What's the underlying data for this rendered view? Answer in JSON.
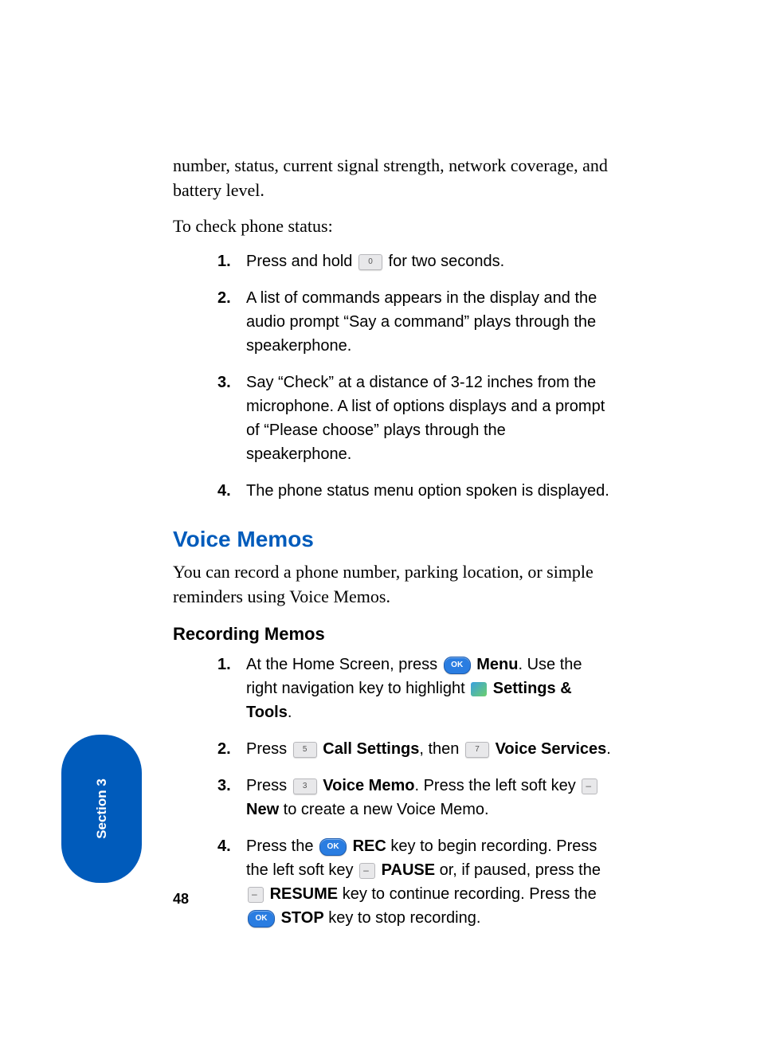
{
  "intro": {
    "continuation": "number, status, current signal strength, network coverage, and battery level.",
    "lead_in": "To check phone status:"
  },
  "check_steps": [
    {
      "num": "1.",
      "before": "Press and hold ",
      "icon": "key-0",
      "after": " for two seconds."
    },
    {
      "num": "2.",
      "text": "A list of commands appears in the display and the audio prompt “Say a command” plays through the speakerphone."
    },
    {
      "num": "3.",
      "text": "Say “Check” at a distance of 3-12 inches from the microphone. A list of options displays and a prompt of “Please choose” plays through the speakerphone."
    },
    {
      "num": "4.",
      "text": "The phone status menu option spoken is displayed."
    }
  ],
  "voice_memos": {
    "heading": "Voice Memos",
    "intro": "You can record a phone number, parking location, or simple reminders using Voice Memos.",
    "sub_heading": "Recording Memos"
  },
  "record_steps": {
    "s1": {
      "num": "1.",
      "t1": "At the Home Screen, press ",
      "menu": "Menu",
      "t2": ". Use the right navigation key to highlight ",
      "settings": "Settings & Tools",
      "t3": "."
    },
    "s2": {
      "num": "2.",
      "t1": "Press ",
      "call": "Call Settings",
      "t2": ", then ",
      "voice": "Voice Services",
      "t3": "."
    },
    "s3": {
      "num": "3.",
      "t1": "Press ",
      "memo": "Voice Memo",
      "t2": ". Press the left soft key ",
      "new": "New",
      "t3": " to create a new Voice Memo."
    },
    "s4": {
      "num": "4.",
      "t1": "Press the ",
      "rec": "REC",
      "t2": " key to begin recording. Press the left soft key ",
      "pause": "PAUSE",
      "t3": " or, if paused, press the ",
      "resume": "RESUME",
      "t4": " key to continue recording. Press the ",
      "stop": "STOP",
      "t5": " key to stop recording."
    }
  },
  "icons": {
    "ok_label": "OK",
    "key0": "0",
    "key5": "5",
    "key7": "7",
    "key3": "3"
  },
  "section_tab": "Section 3",
  "page_number": "48",
  "colors": {
    "heading_blue": "#005bbb",
    "tab_blue": "#005bbb",
    "ok_blue": "#2a7de1"
  },
  "fonts": {
    "serif_size_pt": 16,
    "sans_body_size_pt": 15,
    "heading_blue_size_pt": 21,
    "heading_black_size_pt": 16
  }
}
